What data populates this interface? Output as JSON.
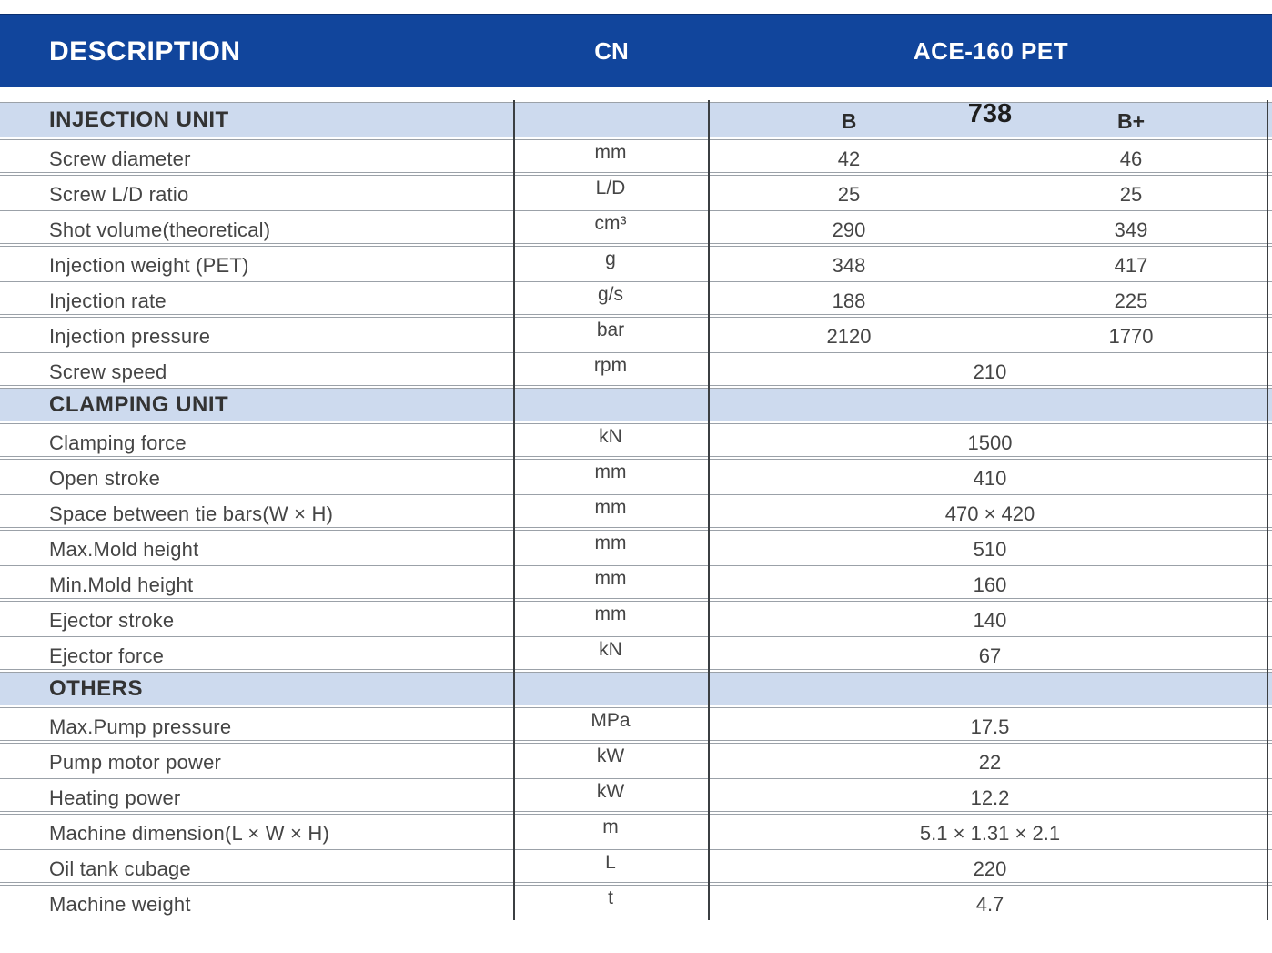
{
  "header": {
    "col_description": "DESCRIPTION",
    "col_cn": "CN",
    "col_model": "ACE-160 PET"
  },
  "subheader": {
    "variant_b": "B",
    "page_number": "738",
    "variant_b_plus": "B+"
  },
  "sections": [
    {
      "title": "INJECTION UNIT",
      "has_variants": true,
      "rows": [
        {
          "label": "Screw diameter",
          "unit": "mm",
          "b": "42",
          "bplus": "46"
        },
        {
          "label": "Screw L/D ratio",
          "unit": "L/D",
          "b": "25",
          "bplus": "25"
        },
        {
          "label": "Shot volume(theoretical)",
          "unit": "cm³",
          "b": "290",
          "bplus": "349"
        },
        {
          "label": "Injection weight (PET)",
          "unit": "g",
          "b": "348",
          "bplus": "417"
        },
        {
          "label": "Injection rate",
          "unit": "g/s",
          "b": "188",
          "bplus": "225"
        },
        {
          "label": "Injection pressure",
          "unit": "bar",
          "b": "2120",
          "bplus": "1770"
        },
        {
          "label": "Screw speed",
          "unit": "rpm",
          "span": "210"
        }
      ]
    },
    {
      "title": "CLAMPING UNIT",
      "has_variants": false,
      "rows": [
        {
          "label": "Clamping force",
          "unit": "kN",
          "span": "1500"
        },
        {
          "label": "Open stroke",
          "unit": "mm",
          "span": "410"
        },
        {
          "label": "Space between tie bars(W × H)",
          "unit": "mm",
          "span": "470 × 420"
        },
        {
          "label": "Max.Mold height",
          "unit": "mm",
          "span": "510"
        },
        {
          "label": "Min.Mold height",
          "unit": "mm",
          "span": "160"
        },
        {
          "label": "Ejector stroke",
          "unit": "mm",
          "span": "140"
        },
        {
          "label": "Ejector force",
          "unit": "kN",
          "span": "67"
        }
      ]
    },
    {
      "title": "OTHERS",
      "has_variants": false,
      "rows": [
        {
          "label": "Max.Pump pressure",
          "unit": "MPa",
          "span": "17.5"
        },
        {
          "label": "Pump motor power",
          "unit": "kW",
          "span": "22"
        },
        {
          "label": "Heating power",
          "unit": "kW",
          "span": "12.2"
        },
        {
          "label": "Machine dimension(L × W × H)",
          "unit": "m",
          "span": "5.1 × 1.31 × 2.1"
        },
        {
          "label": "Oil tank cubage",
          "unit": "L",
          "span": "220"
        },
        {
          "label": "Machine weight",
          "unit": "t",
          "span": "4.7"
        }
      ]
    }
  ],
  "colors": {
    "header_bg": "#11459c",
    "header_border": "#0a2f70",
    "subheader_bg": "#cddaee",
    "grid_gray": "#9ba1a8",
    "divider_dark": "#3b3f42"
  }
}
